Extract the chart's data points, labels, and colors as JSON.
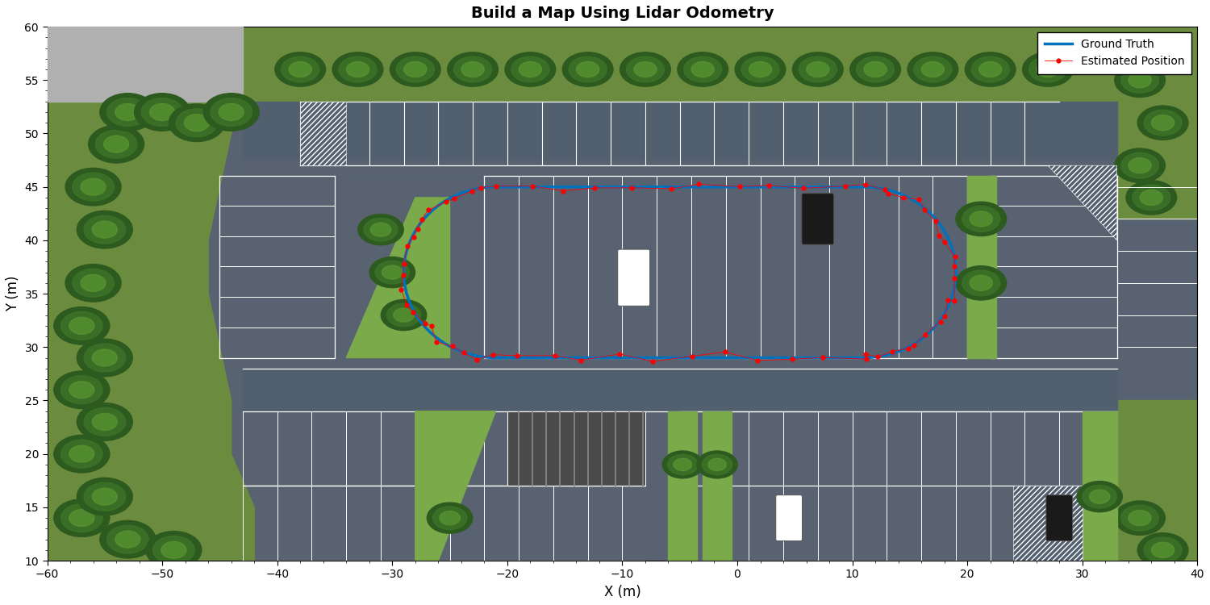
{
  "title": "Build a Map Using Lidar Odometry",
  "xlabel": "X (m)",
  "ylabel": "Y (m)",
  "xlim": [
    -60,
    40
  ],
  "ylim": [
    10,
    60
  ],
  "title_fontsize": 14,
  "axis_label_fontsize": 12,
  "legend_labels": [
    "Ground Truth",
    "Estimated Position"
  ],
  "ground_truth_color": "#0072BD",
  "estimated_color": "#FF0000",
  "figsize": [
    15.0,
    7.5
  ],
  "dpi": 100,
  "ground_truth_linewidth": 2.5,
  "estimated_markersize": 7,
  "asphalt_color": "#586270",
  "asphalt_dark": "#4a5262",
  "green_area": "#6b8c3e",
  "tree_dark": "#2d5a1e",
  "tree_mid": "#3d7228",
  "tree_light": "#5a9632",
  "line_color": "#ffffff",
  "sidewalk_color": "#c0c0c0",
  "island_color": "#7aaa4a",
  "road_color": "#525f6e",
  "curb_color": "#aaaaaa"
}
